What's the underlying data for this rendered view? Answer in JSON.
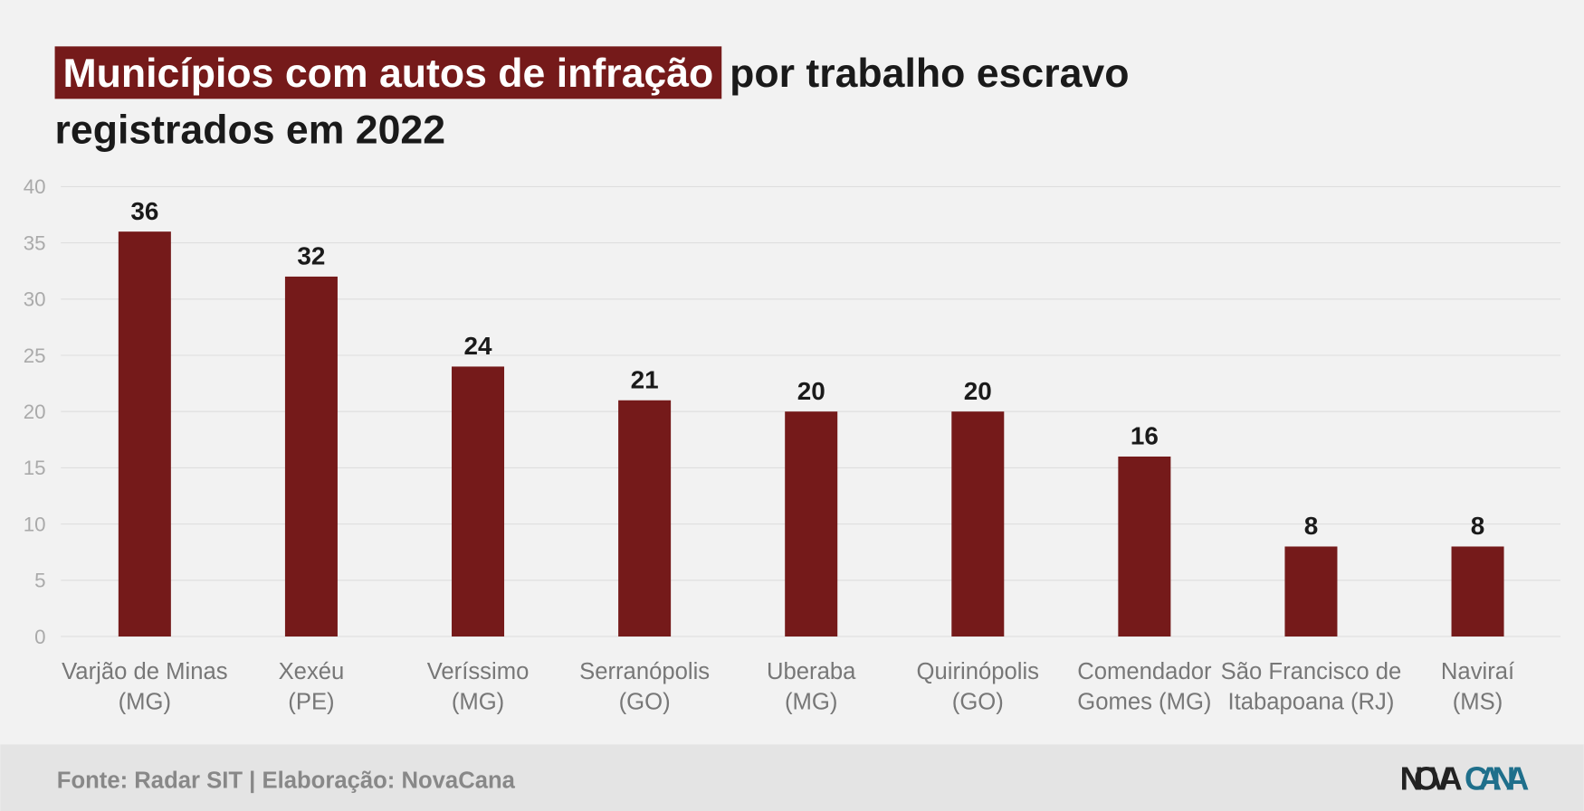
{
  "chart_data": {
    "type": "bar",
    "title": [
      "Municípios com autos de infração",
      "por trabalho escravo",
      "registrados em 2022"
    ],
    "categories": [
      "Varjão de Minas\n(MG)",
      "Xexéu\n(PE)",
      "Veríssimo\n(MG)",
      "Serranópolis\n(GO)",
      "Uberaba\n(MG)",
      "Quirinópolis\n(GO)",
      "Comendador\nGomes (MG)",
      "São Francisco de\nItabapoana (RJ)",
      "Naviraí\n(MS)"
    ],
    "values": [
      36,
      32,
      24,
      21,
      20,
      20,
      16,
      8,
      8
    ],
    "color": "#751a1a",
    "highlight_color": "#751a1a",
    "ylim": [
      0,
      40
    ],
    "yticks": [
      0,
      5,
      10,
      15,
      20,
      25,
      30,
      35,
      40
    ],
    "grid": true,
    "source": "Fonte: Radar SIT | Elaboração: NovaCana",
    "logo": [
      "NOVA",
      "CANA"
    ]
  }
}
